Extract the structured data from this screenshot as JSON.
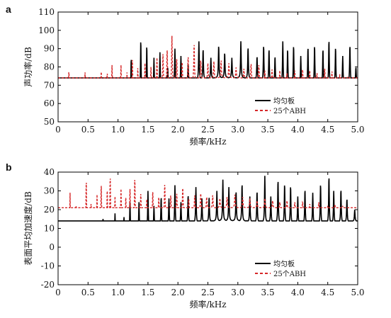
{
  "figure": {
    "panels": [
      "a",
      "b"
    ]
  },
  "chart_data": [
    {
      "panel": "a",
      "type": "line",
      "xlabel": "频率/kHz",
      "ylabel": "声功率/dB",
      "xlim": [
        0,
        5.0
      ],
      "ylim": [
        50,
        110
      ],
      "xticks": [
        "0",
        "0.5",
        "1.0",
        "1.5",
        "2.0",
        "2.5",
        "3.0",
        "3.5",
        "4.0",
        "4.5",
        "5.0"
      ],
      "yticks": [
        "50",
        "60",
        "70",
        "80",
        "90",
        "100",
        "110"
      ],
      "legend_position": "lower-right",
      "grid": false,
      "series": [
        {
          "name": "均匀板",
          "color": "#000000",
          "style": "solid",
          "base": [
            [
              0,
              57
            ],
            [
              0.3,
              59
            ],
            [
              0.6,
              60
            ],
            [
              0.9,
              61
            ],
            [
              1.2,
              63
            ],
            [
              1.5,
              66
            ],
            [
              1.8,
              69
            ],
            [
              2.1,
              71
            ],
            [
              2.4,
              73
            ],
            [
              2.7,
              74
            ],
            [
              3.0,
              74
            ],
            [
              3.3,
              73
            ],
            [
              3.6,
              71
            ],
            [
              3.9,
              70
            ],
            [
              4.2,
              70
            ],
            [
              4.5,
              70
            ],
            [
              4.8,
              71
            ],
            [
              5.0,
              72
            ]
          ],
          "peaks": [
            [
              0.45,
              62
            ],
            [
              0.72,
              63
            ],
            [
              0.93,
              65
            ],
            [
              1.05,
              62
            ],
            [
              1.22,
              85
            ],
            [
              1.38,
              95
            ],
            [
              1.48,
              92
            ],
            [
              1.6,
              85
            ],
            [
              1.7,
              88
            ],
            [
              1.83,
              80
            ],
            [
              1.95,
              90
            ],
            [
              2.05,
              86
            ],
            [
              2.17,
              82
            ],
            [
              2.35,
              94
            ],
            [
              2.42,
              90
            ],
            [
              2.55,
              85
            ],
            [
              2.68,
              92
            ],
            [
              2.78,
              88
            ],
            [
              2.9,
              85
            ],
            [
              3.05,
              94
            ],
            [
              3.17,
              91
            ],
            [
              3.32,
              86
            ],
            [
              3.43,
              92
            ],
            [
              3.52,
              90
            ],
            [
              3.62,
              86
            ],
            [
              3.75,
              94
            ],
            [
              3.83,
              90
            ],
            [
              3.93,
              92
            ],
            [
              4.05,
              86
            ],
            [
              4.17,
              91
            ],
            [
              4.28,
              92
            ],
            [
              4.42,
              90
            ],
            [
              4.52,
              95
            ],
            [
              4.63,
              91
            ],
            [
              4.75,
              86
            ],
            [
              4.87,
              92
            ],
            [
              4.97,
              80
            ]
          ]
        },
        {
          "name": "25个ABH",
          "color": "#d62728",
          "style": "dashed",
          "base": [
            [
              0,
              61
            ],
            [
              0.3,
              62
            ],
            [
              0.6,
              63
            ],
            [
              0.9,
              64
            ],
            [
              1.2,
              66
            ],
            [
              1.5,
              68
            ],
            [
              1.8,
              71
            ],
            [
              2.1,
              72
            ],
            [
              2.4,
              73
            ],
            [
              2.7,
              74
            ],
            [
              3.0,
              74
            ],
            [
              3.3,
              73
            ],
            [
              3.6,
              71
            ],
            [
              3.9,
              70
            ],
            [
              4.2,
              70
            ],
            [
              4.5,
              69
            ],
            [
              4.8,
              67
            ],
            [
              5.0,
              64
            ]
          ],
          "peaks": [
            [
              0.03,
              53
            ],
            [
              0.08,
              63
            ],
            [
              0.18,
              78
            ],
            [
              0.38,
              74
            ],
            [
              0.45,
              77
            ],
            [
              0.55,
              74
            ],
            [
              0.62,
              72
            ],
            [
              0.72,
              78
            ],
            [
              0.82,
              77
            ],
            [
              0.9,
              81
            ],
            [
              0.97,
              73
            ],
            [
              1.05,
              81
            ],
            [
              1.15,
              77
            ],
            [
              1.24,
              84
            ],
            [
              1.33,
              80
            ],
            [
              1.45,
              82
            ],
            [
              1.55,
              80
            ],
            [
              1.65,
              85
            ],
            [
              1.75,
              87
            ],
            [
              1.82,
              90
            ],
            [
              1.9,
              97
            ],
            [
              1.98,
              85
            ],
            [
              2.07,
              83
            ],
            [
              2.17,
              86
            ],
            [
              2.27,
              93
            ],
            [
              2.38,
              84
            ],
            [
              2.5,
              82
            ],
            [
              2.6,
              83
            ],
            [
              2.72,
              84
            ],
            [
              2.85,
              82
            ],
            [
              2.97,
              80
            ],
            [
              3.1,
              79
            ],
            [
              3.22,
              82
            ],
            [
              3.35,
              81
            ],
            [
              3.45,
              78
            ],
            [
              3.57,
              79
            ],
            [
              3.7,
              78
            ],
            [
              3.82,
              77
            ],
            [
              3.95,
              78
            ],
            [
              4.08,
              79
            ],
            [
              4.2,
              78
            ],
            [
              4.32,
              77
            ],
            [
              4.45,
              79
            ],
            [
              4.57,
              78
            ],
            [
              4.7,
              76
            ],
            [
              4.83,
              75
            ]
          ]
        }
      ]
    },
    {
      "panel": "b",
      "type": "line",
      "xlabel": "频率/kHz",
      "ylabel": "表面平均加速度/dB",
      "xlim": [
        0,
        5.0
      ],
      "ylim": [
        -20,
        40
      ],
      "xticks": [
        "0",
        "0.5",
        "1.0",
        "1.5",
        "2.0",
        "2.5",
        "3.0",
        "3.5",
        "4.0",
        "4.5",
        "5.0"
      ],
      "yticks": [
        "-20",
        "-10",
        "0",
        "10",
        "20",
        "30",
        "40"
      ],
      "legend_position": "lower-right",
      "grid": false,
      "series": [
        {
          "name": "均匀板",
          "color": "#000000",
          "style": "solid",
          "base": [
            [
              0,
              -20
            ],
            [
              0.1,
              -12
            ],
            [
              0.3,
              -4
            ],
            [
              0.6,
              1
            ],
            [
              0.9,
              4
            ],
            [
              1.2,
              7
            ],
            [
              1.5,
              9
            ],
            [
              1.8,
              11
            ],
            [
              2.1,
              12
            ],
            [
              2.4,
              13
            ],
            [
              2.7,
              14
            ],
            [
              3.0,
              14
            ],
            [
              3.3,
              13
            ],
            [
              3.6,
              13
            ],
            [
              3.9,
              12
            ],
            [
              4.2,
              12
            ],
            [
              4.5,
              12
            ],
            [
              4.8,
              13
            ],
            [
              5.0,
              14
            ]
          ],
          "peaks": [
            [
              0.08,
              4
            ],
            [
              0.18,
              8
            ],
            [
              0.35,
              12
            ],
            [
              0.55,
              8
            ],
            [
              0.75,
              15
            ],
            [
              0.95,
              18
            ],
            [
              1.1,
              16
            ],
            [
              1.2,
              24
            ],
            [
              1.35,
              24
            ],
            [
              1.5,
              30
            ],
            [
              1.6,
              22
            ],
            [
              1.72,
              27
            ],
            [
              1.85,
              26
            ],
            [
              1.95,
              33
            ],
            [
              2.05,
              24
            ],
            [
              2.17,
              28
            ],
            [
              2.3,
              32
            ],
            [
              2.4,
              26
            ],
            [
              2.52,
              27
            ],
            [
              2.65,
              30
            ],
            [
              2.75,
              36
            ],
            [
              2.85,
              32
            ],
            [
              2.97,
              30
            ],
            [
              3.07,
              34
            ],
            [
              3.2,
              27
            ],
            [
              3.32,
              30
            ],
            [
              3.45,
              38
            ],
            [
              3.55,
              27
            ],
            [
              3.67,
              36
            ],
            [
              3.78,
              34
            ],
            [
              3.88,
              33
            ],
            [
              4.0,
              27
            ],
            [
              4.12,
              31
            ],
            [
              4.25,
              29
            ],
            [
              4.38,
              34
            ],
            [
              4.52,
              38
            ],
            [
              4.6,
              30
            ],
            [
              4.72,
              31
            ],
            [
              4.82,
              26
            ],
            [
              4.95,
              20
            ]
          ]
        },
        {
          "name": "25个ABH",
          "color": "#d62728",
          "style": "dashed",
          "base": [
            [
              0,
              -22
            ],
            [
              0.1,
              -8
            ],
            [
              0.3,
              2
            ],
            [
              0.6,
              7
            ],
            [
              0.9,
              11
            ],
            [
              1.2,
              14
            ],
            [
              1.5,
              16
            ],
            [
              1.8,
              18
            ],
            [
              2.1,
              19
            ],
            [
              2.4,
              20
            ],
            [
              2.7,
              21
            ],
            [
              3.0,
              21
            ],
            [
              3.3,
              21
            ],
            [
              3.6,
              21
            ],
            [
              3.9,
              20
            ],
            [
              4.2,
              20
            ],
            [
              4.5,
              19
            ],
            [
              4.8,
              18
            ],
            [
              5.0,
              17
            ]
          ],
          "peaks": [
            [
              0.05,
              -3
            ],
            [
              0.12,
              18
            ],
            [
              0.2,
              29
            ],
            [
              0.3,
              22
            ],
            [
              0.4,
              18
            ],
            [
              0.47,
              36
            ],
            [
              0.55,
              23
            ],
            [
              0.65,
              28
            ],
            [
              0.72,
              34
            ],
            [
              0.82,
              31
            ],
            [
              0.87,
              38
            ],
            [
              0.95,
              27
            ],
            [
              1.05,
              31
            ],
            [
              1.13,
              27
            ],
            [
              1.2,
              31
            ],
            [
              1.28,
              37
            ],
            [
              1.38,
              29
            ],
            [
              1.48,
              26
            ],
            [
              1.58,
              30
            ],
            [
              1.68,
              27
            ],
            [
              1.78,
              34
            ],
            [
              1.88,
              28
            ],
            [
              1.98,
              29
            ],
            [
              2.08,
              32
            ],
            [
              2.18,
              26
            ],
            [
              2.28,
              28
            ],
            [
              2.38,
              29
            ],
            [
              2.48,
              27
            ],
            [
              2.58,
              28
            ],
            [
              2.7,
              26
            ],
            [
              2.82,
              27
            ],
            [
              2.95,
              28
            ],
            [
              3.08,
              27
            ],
            [
              3.2,
              26
            ],
            [
              3.32,
              25
            ],
            [
              3.45,
              26
            ],
            [
              3.58,
              25
            ],
            [
              3.7,
              24
            ],
            [
              3.82,
              25
            ],
            [
              3.95,
              24
            ],
            [
              4.08,
              24
            ],
            [
              4.2,
              23
            ],
            [
              4.35,
              24
            ],
            [
              4.5,
              22
            ],
            [
              4.62,
              23
            ],
            [
              4.75,
              22
            ],
            [
              4.88,
              21
            ]
          ]
        }
      ]
    }
  ]
}
